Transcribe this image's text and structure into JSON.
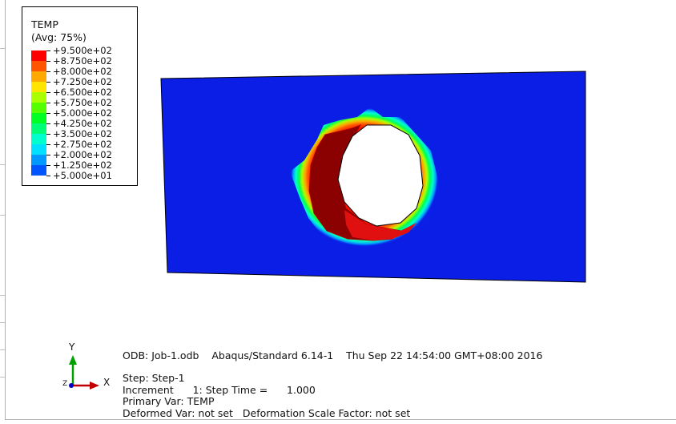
{
  "legend": {
    "title": "TEMP",
    "subtitle": "(Avg: 75%)",
    "entries": [
      {
        "value": "+9.500e+02",
        "color": "#ff0000"
      },
      {
        "value": "+8.750e+02",
        "color": "#ff5400"
      },
      {
        "value": "+8.000e+02",
        "color": "#ffa800"
      },
      {
        "value": "+7.250e+02",
        "color": "#ffe500"
      },
      {
        "value": "+6.500e+02",
        "color": "#aaff00"
      },
      {
        "value": "+5.750e+02",
        "color": "#55ff00"
      },
      {
        "value": "+5.000e+02",
        "color": "#00ff22"
      },
      {
        "value": "+4.250e+02",
        "color": "#00ff77"
      },
      {
        "value": "+3.500e+02",
        "color": "#00ffcc"
      },
      {
        "value": "+2.750e+02",
        "color": "#00e0ff"
      },
      {
        "value": "+2.000e+02",
        "color": "#0099ff"
      },
      {
        "value": "+1.250e+02",
        "color": "#0055ff"
      },
      {
        "value": "+5.000e+01",
        "color": "#0000ff"
      }
    ]
  },
  "triad": {
    "y_label": "Y",
    "x_label": "X",
    "z_label": "Z"
  },
  "info": {
    "odb_line": "ODB: Job-1.odb    Abaqus/Standard 6.14-1    Thu Sep 22 14:54:00 GMT+08:00 2016",
    "step_line": "Step: Step-1",
    "increment_line": "Increment      1: Step Time =      1.000",
    "primary_var_line": "Primary Var: TEMP",
    "deformed_var_line": "Deformed Var: not set   Deformation Scale Factor: not set"
  },
  "colors": {
    "plate": "#0a1ee6",
    "hole_inner_wall": "#8b0000",
    "hole_edge": "#e01010",
    "axis_y": "#00a000",
    "axis_x": "#c00000",
    "axis_z": "#0000c0"
  }
}
